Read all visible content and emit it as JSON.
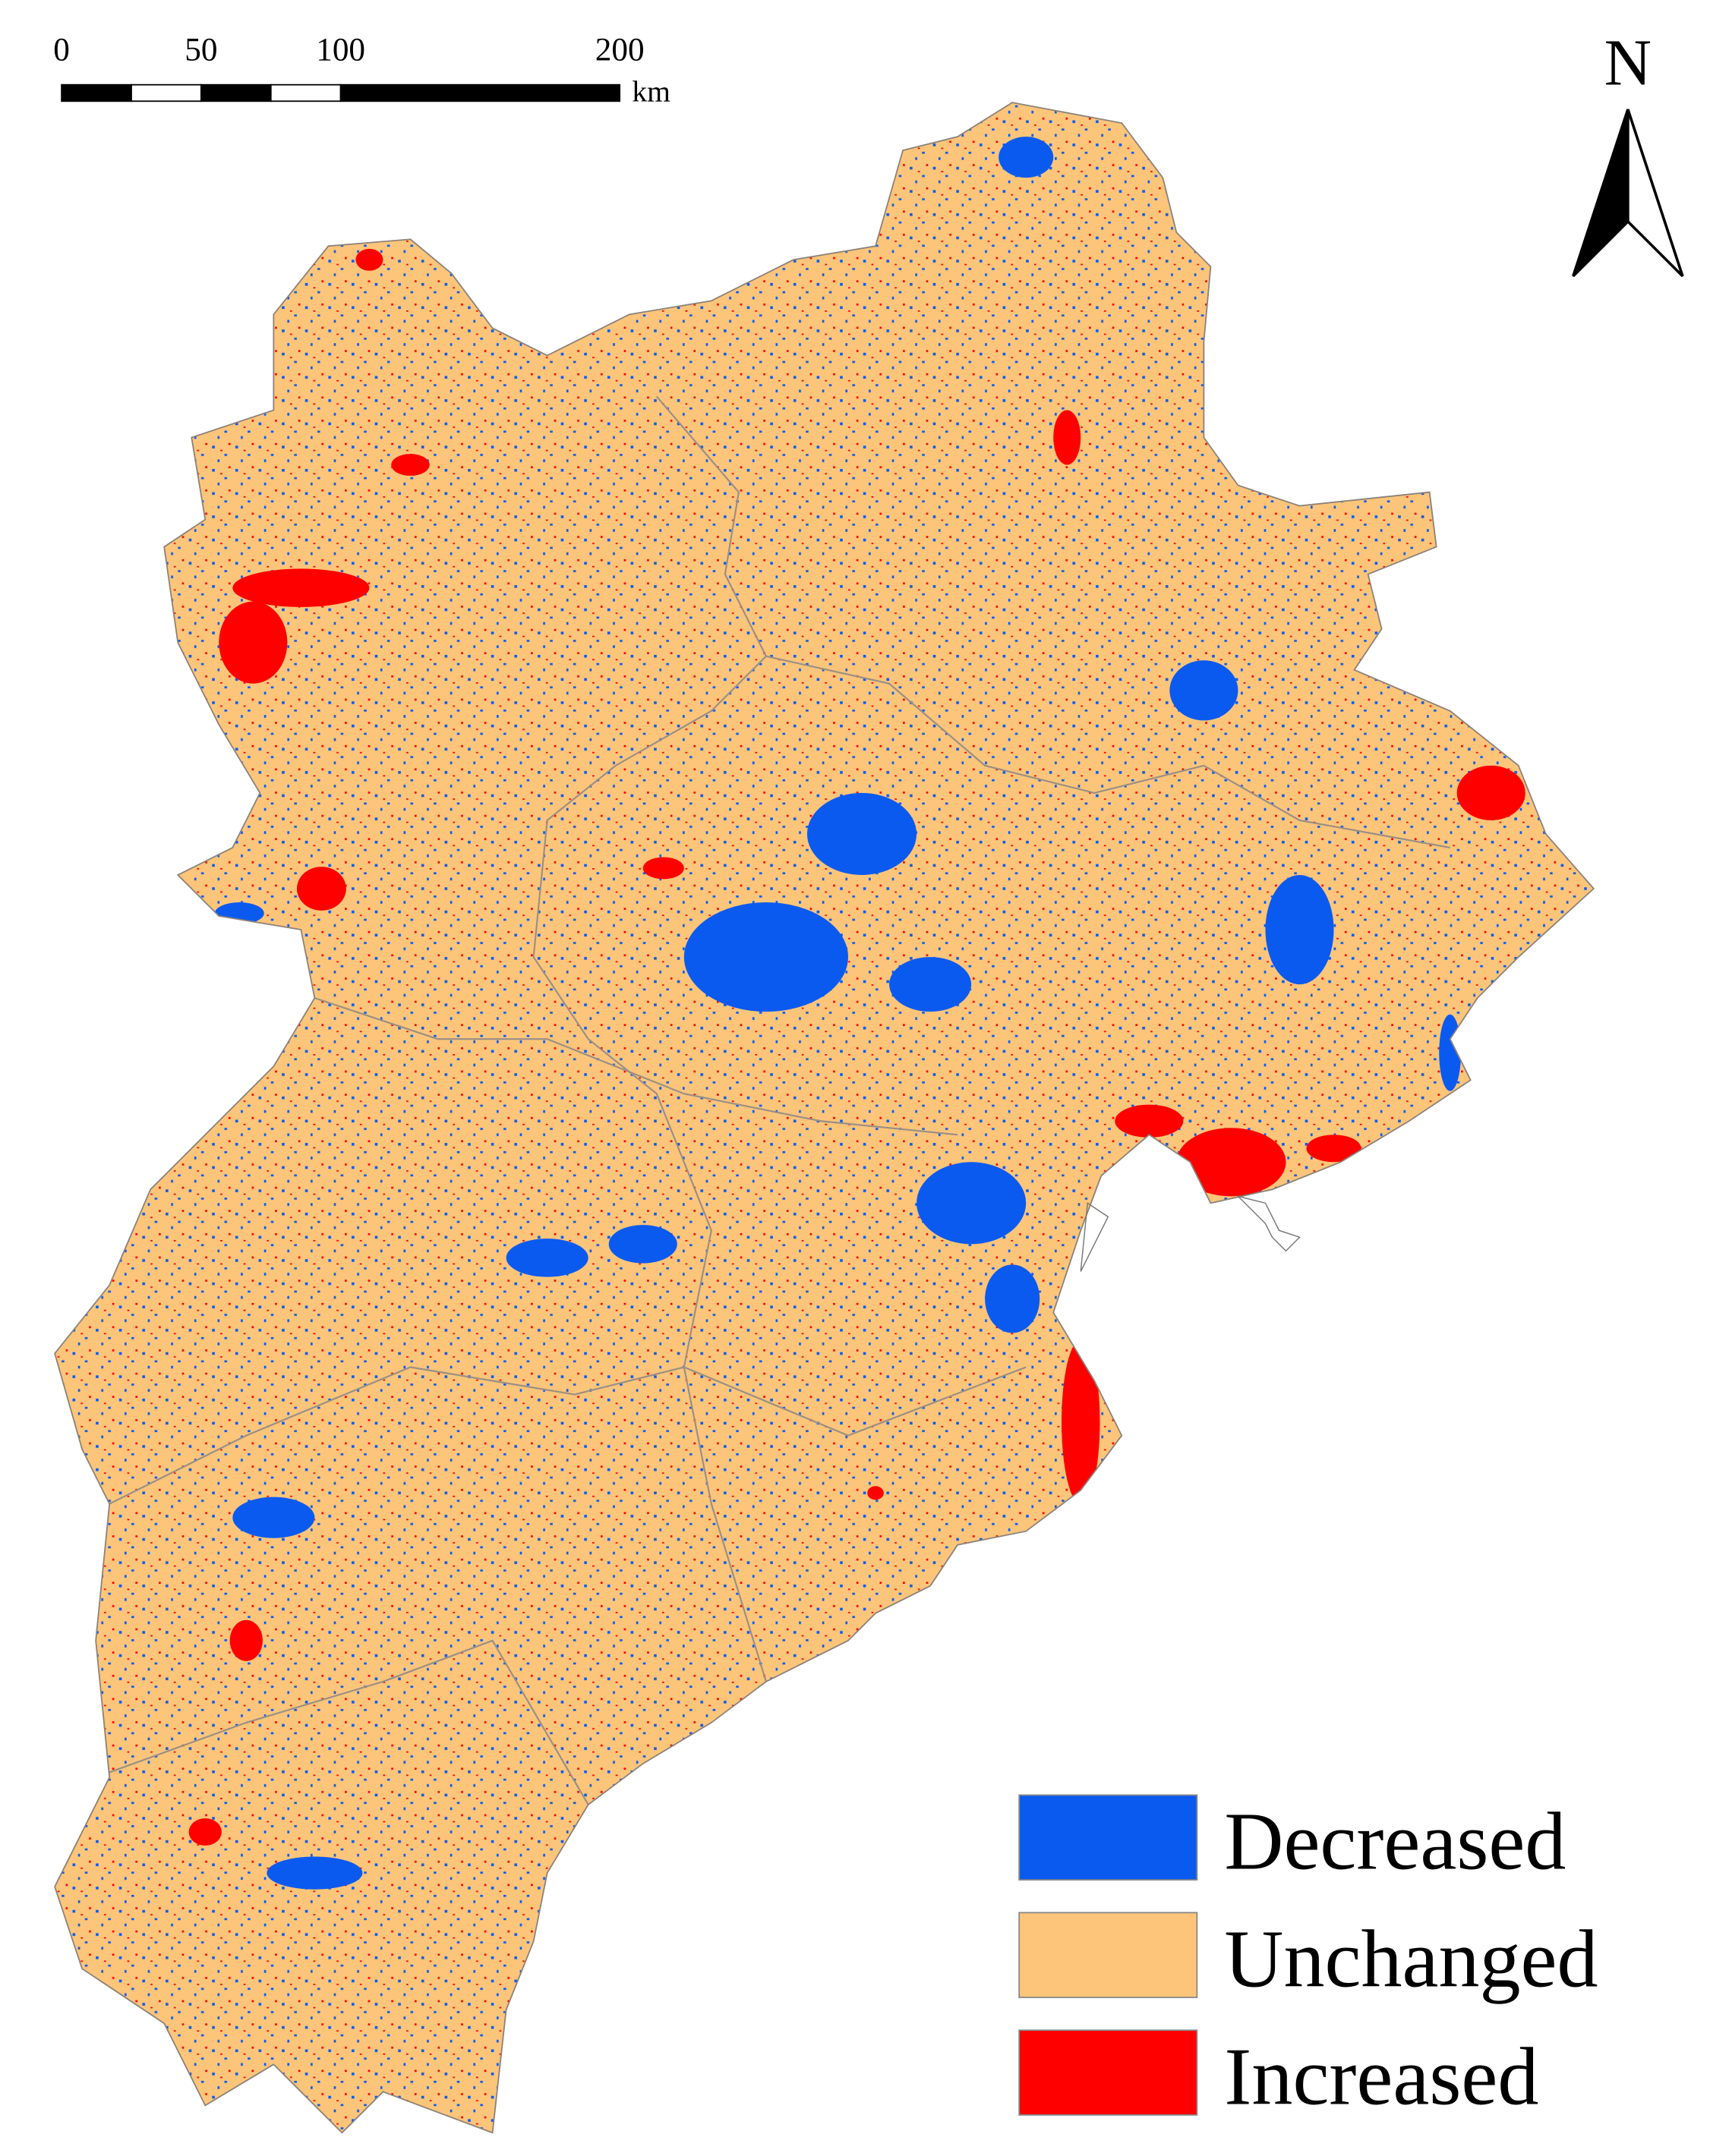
{
  "scale_bar": {
    "ticks": [
      0,
      50,
      100,
      200
    ],
    "unit": "km"
  },
  "north_arrow": {
    "label": "N"
  },
  "legend": {
    "items": [
      {
        "label": "Decreased",
        "color": "#0a5af0"
      },
      {
        "label": "Unchanged",
        "color": "#fcc57a"
      },
      {
        "label": "Increased",
        "color": "#fe0000"
      }
    ]
  }
}
